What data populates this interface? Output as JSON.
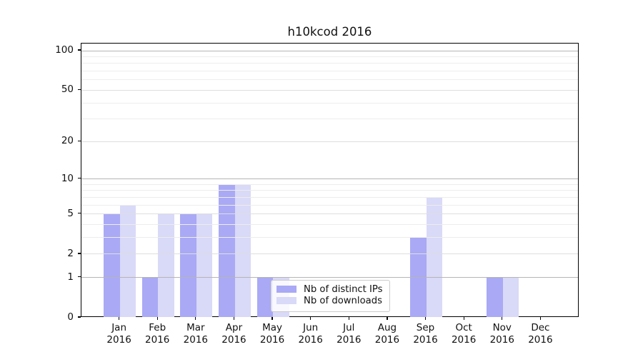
{
  "title": "h10kcod 2016",
  "chart_data": {
    "type": "bar",
    "title": "h10kcod 2016",
    "categories": [
      "Jan 2016",
      "Feb 2016",
      "Mar 2016",
      "Apr 2016",
      "May 2016",
      "Jun 2016",
      "Jul 2016",
      "Aug 2016",
      "Sep 2016",
      "Oct 2016",
      "Nov 2016",
      "Dec 2016"
    ],
    "series": [
      {
        "name": "Nb of distinct IPs",
        "color": "#a9a9f5",
        "values": [
          5,
          1,
          5,
          9,
          1,
          0,
          0,
          0,
          3,
          0,
          1,
          0
        ]
      },
      {
        "name": "Nb of downloads",
        "color": "#d9d9f8",
        "values": [
          6,
          5,
          5,
          9,
          1,
          0,
          0,
          0,
          7,
          0,
          1,
          0
        ]
      }
    ],
    "yticks": [
      0,
      1,
      2,
      5,
      10,
      20,
      50,
      100
    ],
    "minor_yticks": [
      3,
      4,
      6,
      7,
      8,
      9,
      30,
      40,
      60,
      70,
      80,
      90
    ],
    "y_scale": "log10(1+value)",
    "ylim": [
      0,
      112
    ],
    "xlabel": "",
    "ylabel": "",
    "grid": "horizontal major+minor",
    "legend_position": "inside, lower center",
    "colors": {
      "axis": "#000000",
      "grid_major": "#b5b5b5",
      "grid_sub": "#dedede",
      "grid_minor": "#ededed",
      "legend_border": "#cccccc"
    }
  }
}
